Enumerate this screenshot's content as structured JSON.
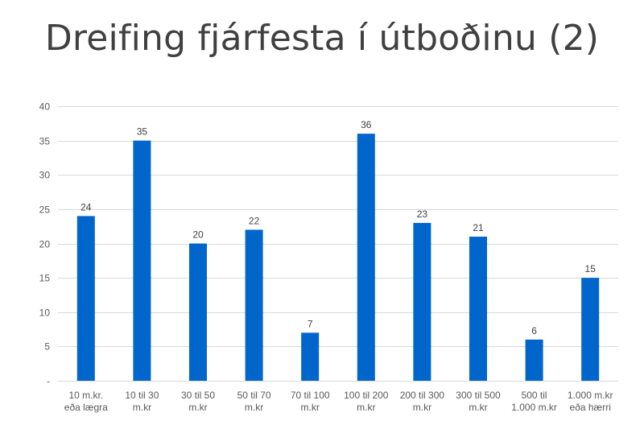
{
  "title": "Dreifing fjárfesta í útboðinu (2)",
  "colors": {
    "bar": "#0066CC",
    "gridline": "#D9D9D9",
    "axis_text": "#595959",
    "title_text": "#404040"
  },
  "chart_data": {
    "type": "bar",
    "title": "Dreifing fjárfesta í útboðinu (2)",
    "categories": [
      [
        "10 m.kr.",
        "eða lægra"
      ],
      [
        "10 til 30",
        "m.kr"
      ],
      [
        "30 til 50",
        "m.kr"
      ],
      [
        "50 til 70",
        "m.kr"
      ],
      [
        "70 til 100",
        "m.kr"
      ],
      [
        "100 til 200",
        "m.kr"
      ],
      [
        "200 til 300",
        "m.kr"
      ],
      [
        "300 til 500",
        "m.kr"
      ],
      [
        "500 til",
        "1.000 m.kr"
      ],
      [
        "1.000 m.kr",
        "eða hærri"
      ]
    ],
    "values": [
      24,
      35,
      20,
      22,
      7,
      36,
      23,
      21,
      6,
      15
    ],
    "data_labels": [
      "24",
      "35",
      "20",
      "22",
      "7",
      "36",
      "23",
      "21",
      "6",
      "15"
    ],
    "ylim": [
      0,
      40
    ],
    "yticks": [
      0,
      5,
      10,
      15,
      20,
      25,
      30,
      35,
      40
    ],
    "ytick_labels": [
      "-",
      "5",
      "10",
      "15",
      "20",
      "25",
      "30",
      "35",
      "40"
    ],
    "grid": true,
    "legend": false,
    "xlabel": "",
    "ylabel": ""
  }
}
